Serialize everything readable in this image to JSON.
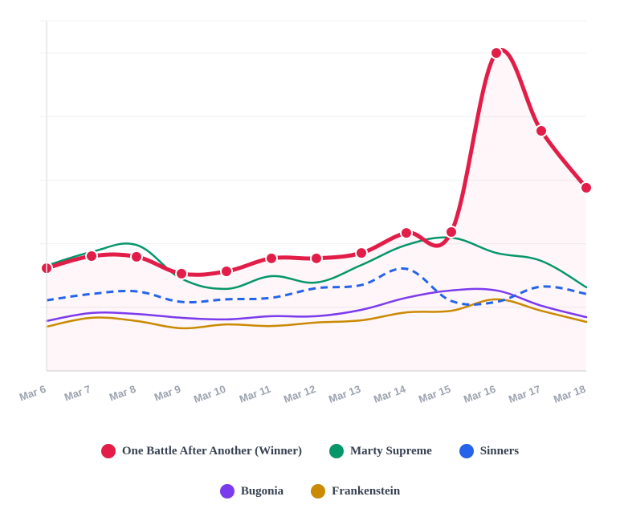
{
  "chart_data": {
    "type": "line",
    "title": "",
    "xlabel": "",
    "ylabel": "",
    "y_scale_note": "no y-axis tick labels shown; values are relative (0 = baseline, 100 = peak gridline)",
    "ylim": [
      0,
      110
    ],
    "grid": true,
    "gridline_values": [
      0,
      20,
      40,
      60,
      80,
      100
    ],
    "x": [
      "Mar 6",
      "Mar 7",
      "Mar 8",
      "Mar 9",
      "Mar 10",
      "Mar 11",
      "Mar 12",
      "Mar 13",
      "Mar 14",
      "Mar 15",
      "Mar 16",
      "Mar 17",
      "Mar 18"
    ],
    "legend_position": "bottom",
    "series": [
      {
        "name": "One Battle After Another (Winner)",
        "color": "#e11d48",
        "style": "solid-thick-markers",
        "area_fill": true,
        "values": [
          32.3,
          36.1,
          35.9,
          30.6,
          31.3,
          35.4,
          35.4,
          37.1,
          43.4,
          43.7,
          100,
          75.5,
          57.6
        ]
      },
      {
        "name": "Marty Supreme",
        "color": "#059669",
        "style": "solid",
        "values": [
          33.1,
          37.4,
          39.6,
          29.0,
          25.8,
          29.8,
          27.8,
          33.3,
          39.6,
          41.9,
          37.1,
          34.6,
          26.3
        ]
      },
      {
        "name": "Sinners",
        "color": "#2563eb",
        "style": "dashed",
        "values": [
          22.2,
          24.2,
          25.0,
          21.7,
          22.5,
          23.0,
          26.0,
          27.0,
          32.1,
          22.0,
          21.7,
          26.5,
          24.2
        ]
      },
      {
        "name": "Bugonia",
        "color": "#7c3aed",
        "style": "solid",
        "values": [
          15.7,
          18.2,
          17.9,
          16.7,
          16.2,
          17.2,
          17.2,
          19.2,
          23.0,
          25.3,
          25.3,
          20.5,
          16.9
        ]
      },
      {
        "name": "Frankenstein",
        "color": "#ca8a04",
        "style": "solid",
        "values": [
          13.9,
          16.7,
          15.7,
          13.4,
          14.6,
          14.1,
          15.2,
          15.9,
          18.4,
          18.9,
          22.5,
          18.9,
          15.4
        ]
      }
    ]
  },
  "legend": {
    "row1": [
      {
        "label": "One Battle After Another (Winner)",
        "color": "#e11d48"
      },
      {
        "label": "Marty Supreme",
        "color": "#059669"
      },
      {
        "label": "Sinners",
        "color": "#2563eb"
      }
    ],
    "row2": [
      {
        "label": "Bugonia",
        "color": "#7c3aed"
      },
      {
        "label": "Frankenstein",
        "color": "#ca8a04"
      }
    ]
  }
}
